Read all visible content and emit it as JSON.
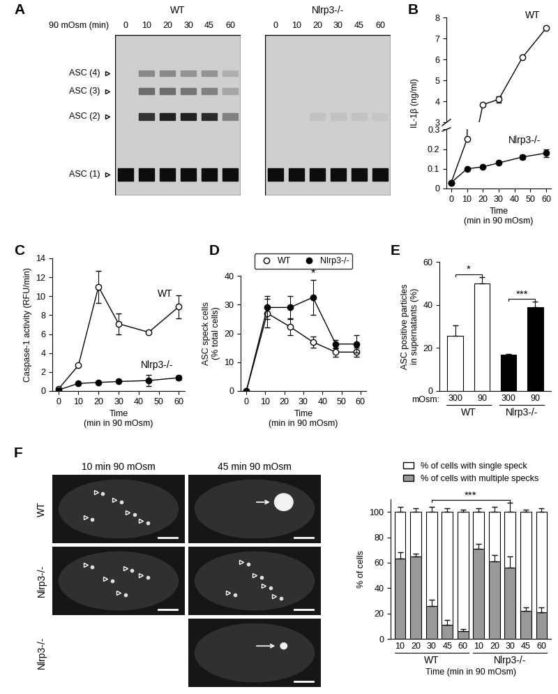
{
  "blot": {
    "panel": "A",
    "label": "90 mOsm (min)",
    "lanes": [
      0,
      10,
      20,
      30,
      45,
      60
    ],
    "bands": [
      "ASC (4)",
      "ASC (3)",
      "ASC (2)",
      "ASC (1)"
    ],
    "blots": [
      {
        "name": "WT",
        "band_intensity": [
          [
            0,
            0.35,
            0.35,
            0.3,
            0.3,
            0.15
          ],
          [
            0,
            0.5,
            0.5,
            0.45,
            0.4,
            0.2
          ],
          [
            0,
            0.8,
            0.9,
            0.9,
            0.85,
            0.4
          ],
          [
            1,
            1,
            1,
            1,
            1,
            1
          ]
        ]
      },
      {
        "name": "Nlrp3-/-",
        "band_intensity": [
          [
            0,
            0,
            0,
            0,
            0,
            0
          ],
          [
            0,
            0,
            0,
            0,
            0,
            0
          ],
          [
            0,
            0,
            0.05,
            0.05,
            0.05,
            0.03
          ],
          [
            1,
            1,
            1,
            1,
            1,
            1
          ]
        ]
      }
    ]
  },
  "chart_data": [
    {
      "panel": "B",
      "type": "line",
      "y_label": "IL-1β (ng/ml)",
      "x_label": "Time\n(min in 90 mOsm)",
      "x": [
        0,
        10,
        20,
        30,
        45,
        60
      ],
      "xlim": [
        -3,
        63
      ],
      "xticks": [
        0,
        10,
        20,
        30,
        40,
        50,
        60
      ],
      "axes": [
        {
          "ylim": [
            3,
            8
          ],
          "yticks": [
            3,
            4,
            5,
            6,
            7,
            8
          ]
        },
        {
          "ylim": [
            0,
            0.3
          ],
          "yticks": [
            0,
            0.1,
            0.2,
            0.3
          ]
        }
      ],
      "series": [
        {
          "name": "WT",
          "color": "#ffffff",
          "marker": "o",
          "values": [
            0.03,
            0.25,
            3.85,
            4.1,
            6.1,
            7.5
          ],
          "errors": [
            null,
            null,
            null,
            0.15,
            null,
            null
          ]
        },
        {
          "name": "Nlrp3-/-",
          "color": "#000000",
          "marker": "o",
          "values": [
            0.03,
            0.1,
            0.11,
            0.13,
            0.16,
            0.18
          ],
          "errors": [
            null,
            null,
            null,
            null,
            0.01,
            0.02
          ]
        }
      ]
    },
    {
      "panel": "C",
      "type": "line",
      "y_label": "Caspase-1 activity (RFU/min)",
      "x_label": "Time\n(min in 90 mOsm)",
      "x": [
        0,
        10,
        20,
        30,
        45,
        60
      ],
      "xlim": [
        -3,
        63
      ],
      "xticks": [
        0,
        10,
        20,
        30,
        40,
        50,
        60
      ],
      "ylim": [
        0,
        14
      ],
      "yticks": [
        0,
        2,
        4,
        6,
        8,
        10,
        12,
        14
      ],
      "series": [
        {
          "name": "WT",
          "color": "#ffffff",
          "marker": "o",
          "values": [
            0.2,
            2.7,
            11,
            7.1,
            6.2,
            8.9
          ],
          "errors": [
            null,
            null,
            1.7,
            1.1,
            null,
            1.2
          ]
        },
        {
          "name": "Nlrp3-/-",
          "color": "#000000",
          "marker": "o",
          "values": [
            0.1,
            0.8,
            0.9,
            1.0,
            1.1,
            1.4
          ],
          "errors": [
            null,
            null,
            null,
            null,
            0.6,
            0.2
          ]
        }
      ]
    },
    {
      "panel": "D",
      "type": "line",
      "y_label": "ASC speck cells\n(% total cells)",
      "x_label": "Time\n(min in 90 mOsm)",
      "x": [
        0,
        11,
        23,
        35,
        47,
        58
      ],
      "xlim": [
        -3,
        63
      ],
      "xticks": [
        0,
        10,
        20,
        30,
        40,
        50,
        60
      ],
      "ylim": [
        0,
        40
      ],
      "yticks": [
        0,
        10,
        20,
        30,
        40
      ],
      "legend": "top",
      "annotations": [
        {
          "text": "*",
          "x": 35
        }
      ],
      "series": [
        {
          "name": "WT",
          "color": "#ffffff",
          "marker": "o",
          "values": [
            0,
            27,
            22.3,
            17,
            13.5,
            13.5
          ],
          "errors": [
            null,
            5,
            3,
            2,
            1.5,
            1.5
          ]
        },
        {
          "name": "Nlrp3-/-",
          "color": "#000000",
          "marker": "o",
          "values": [
            0,
            29,
            29,
            32.5,
            16.3,
            16.3
          ],
          "errors": [
            null,
            4,
            4,
            6,
            1.5,
            3
          ]
        }
      ]
    },
    {
      "panel": "E",
      "type": "bar",
      "y_label": "ASC positive particles\nin supernatants (%)",
      "category_label": "mOsm:",
      "categories": [
        "300",
        "90",
        "300",
        "90"
      ],
      "values": [
        25.5,
        50,
        17,
        39
      ],
      "errors": [
        5,
        3,
        0.3,
        2.5
      ],
      "colors": [
        "#ffffff",
        "#ffffff",
        "#000000",
        "#000000"
      ],
      "groups": [
        {
          "name": "WT",
          "from": 0,
          "to": 1
        },
        {
          "name": "Nlrp3-/-",
          "from": 2,
          "to": 3
        }
      ],
      "ylim": [
        0,
        60
      ],
      "yticks": [
        0,
        20,
        40,
        60
      ],
      "annotations": [
        {
          "text": "*",
          "from": 0,
          "to": 1
        },
        {
          "text": "***",
          "from": 2,
          "to": 3
        }
      ]
    },
    {
      "type": "bar",
      "stacked": true,
      "y_label": "% of cells",
      "x_label": "Time (min in 90 mOsm)",
      "categories": [
        "10",
        "20",
        "30",
        "45",
        "60",
        "10",
        "20",
        "30",
        "45",
        "60"
      ],
      "groups": [
        {
          "name": "WT",
          "from": 0,
          "to": 4
        },
        {
          "name": "Nlrp3-/-",
          "from": 5,
          "to": 9
        }
      ],
      "ylim": [
        0,
        110
      ],
      "yticks": [
        0,
        20,
        40,
        60,
        80,
        100
      ],
      "legend": "top",
      "annotations": [
        {
          "text": "***",
          "from": 2,
          "to": 7
        }
      ],
      "series": [
        {
          "name": "% of cells with multiple specks",
          "color": "#999999",
          "values": [
            63,
            65,
            26,
            11,
            6,
            71,
            61,
            56,
            22,
            21
          ],
          "errors": [
            5,
            2,
            5,
            4,
            1.5,
            4,
            5,
            9,
            3,
            4
          ]
        },
        {
          "name": "% of cells with single speck",
          "color": "#ffffff",
          "values": [
            37,
            35,
            74,
            89,
            94,
            29,
            39,
            44,
            78,
            79
          ],
          "errors": [
            4,
            3,
            4,
            3,
            2,
            3,
            4,
            7,
            2,
            3
          ]
        }
      ]
    }
  ],
  "micrographs": {
    "panel": "F",
    "columns": [
      "10 min 90 mOsm",
      "45 min 90 mOsm"
    ],
    "rows": [
      {
        "label": "WT",
        "cells": [
          "multiple",
          "single"
        ]
      },
      {
        "label": "Nlrp3-/-",
        "cells": [
          "multiple",
          "multiple"
        ]
      },
      {
        "label": "Nlrp3-/-",
        "cells": [
          null,
          "single"
        ]
      }
    ]
  }
}
